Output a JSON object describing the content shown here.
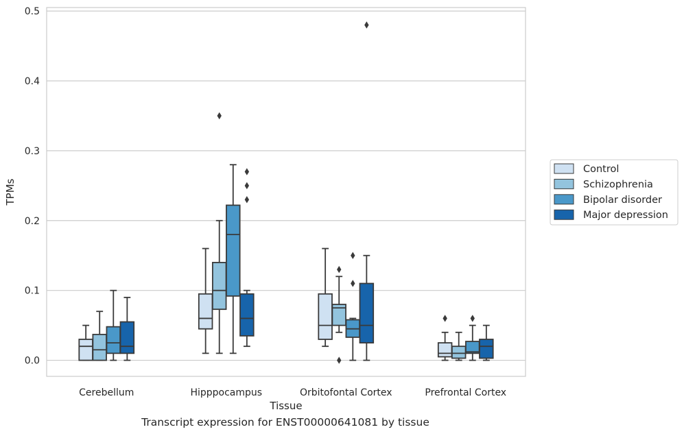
{
  "caption": "Transcript expression for ENST00000641081 by tissue",
  "colors": {
    "Control": "#cfe1f2",
    "Schizophrenia": "#93c4de",
    "Bipolar disorder": "#4a98c9",
    "Major depression": "#1764ab",
    "line": "#3a3a3a",
    "grid": "#cccccc"
  },
  "chart_data": {
    "type": "box",
    "xlabel": "Tissue",
    "ylabel": "TPMs",
    "ylim": [
      -0.023,
      0.505
    ],
    "yticks": [
      0.0,
      0.1,
      0.2,
      0.3,
      0.4,
      0.5
    ],
    "ytick_labels": [
      "0.0",
      "0.1",
      "0.2",
      "0.3",
      "0.4",
      "0.5"
    ],
    "grid": "horizontal",
    "legend_position": "right",
    "categories": [
      "Cerebellum",
      "Hipppocampus",
      "Orbitofontal Cortex",
      "Prefrontal Cortex"
    ],
    "series": [
      {
        "name": "Control",
        "boxes": [
          {
            "q1": 0.0,
            "median": 0.02,
            "q3": 0.03,
            "whislo": 0.0,
            "whishi": 0.05,
            "fliers": []
          },
          {
            "q1": 0.045,
            "median": 0.06,
            "q3": 0.095,
            "whislo": 0.01,
            "whishi": 0.16,
            "fliers": []
          },
          {
            "q1": 0.03,
            "median": 0.05,
            "q3": 0.095,
            "whislo": 0.02,
            "whishi": 0.16,
            "fliers": []
          },
          {
            "q1": 0.005,
            "median": 0.01,
            "q3": 0.025,
            "whislo": 0.0,
            "whishi": 0.04,
            "fliers": [
              0.06
            ]
          }
        ]
      },
      {
        "name": "Schizophrenia",
        "boxes": [
          {
            "q1": 0.0,
            "median": 0.015,
            "q3": 0.037,
            "whislo": 0.0,
            "whishi": 0.07,
            "fliers": []
          },
          {
            "q1": 0.073,
            "median": 0.1,
            "q3": 0.14,
            "whislo": 0.01,
            "whishi": 0.2,
            "fliers": [
              0.35
            ]
          },
          {
            "q1": 0.05,
            "median": 0.075,
            "q3": 0.08,
            "whislo": 0.04,
            "whishi": 0.12,
            "fliers": [
              0.13,
              0.0
            ]
          },
          {
            "q1": 0.003,
            "median": 0.01,
            "q3": 0.02,
            "whislo": 0.0,
            "whishi": 0.04,
            "fliers": []
          }
        ]
      },
      {
        "name": "Bipolar disorder",
        "boxes": [
          {
            "q1": 0.01,
            "median": 0.025,
            "q3": 0.048,
            "whislo": 0.0,
            "whishi": 0.1,
            "fliers": []
          },
          {
            "q1": 0.092,
            "median": 0.18,
            "q3": 0.222,
            "whislo": 0.01,
            "whishi": 0.28,
            "fliers": []
          },
          {
            "q1": 0.033,
            "median": 0.045,
            "q3": 0.058,
            "whislo": 0.0,
            "whishi": 0.06,
            "fliers": [
              0.15,
              0.11
            ]
          },
          {
            "q1": 0.01,
            "median": 0.012,
            "q3": 0.027,
            "whislo": 0.0,
            "whishi": 0.05,
            "fliers": [
              0.06
            ]
          }
        ]
      },
      {
        "name": "Major depression",
        "boxes": [
          {
            "q1": 0.01,
            "median": 0.02,
            "q3": 0.055,
            "whislo": 0.0,
            "whishi": 0.09,
            "fliers": []
          },
          {
            "q1": 0.035,
            "median": 0.06,
            "q3": 0.095,
            "whislo": 0.02,
            "whishi": 0.1,
            "fliers": [
              0.27,
              0.25,
              0.23
            ]
          },
          {
            "q1": 0.025,
            "median": 0.05,
            "q3": 0.11,
            "whislo": 0.0,
            "whishi": 0.15,
            "fliers": [
              0.48
            ]
          },
          {
            "q1": 0.003,
            "median": 0.02,
            "q3": 0.03,
            "whislo": 0.0,
            "whishi": 0.05,
            "fliers": []
          }
        ]
      }
    ]
  }
}
